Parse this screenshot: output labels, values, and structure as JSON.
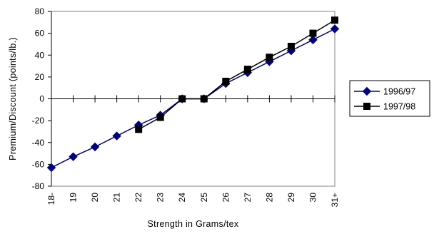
{
  "chart_data": {
    "type": "line",
    "title": "",
    "xlabel": "Strength in Grams/tex",
    "ylabel": "Premium/Discount (points/lb.)",
    "categories": [
      "18-",
      "19",
      "20",
      "21",
      "22",
      "23",
      "24",
      "25",
      "26",
      "27",
      "28",
      "29",
      "30",
      "31+"
    ],
    "ylim": [
      -80,
      80
    ],
    "yticks": [
      -80,
      -60,
      -40,
      -20,
      0,
      20,
      40,
      60,
      80
    ],
    "yticklabels": [
      "-80",
      "-60",
      "-40",
      "-20",
      "0",
      "20",
      "40",
      "60",
      "80"
    ],
    "grid": false,
    "legend_position": "right",
    "series": [
      {
        "name": "1996/97",
        "color": "#000080",
        "marker": "diamond",
        "values": [
          -63,
          -53,
          -44,
          -34,
          -24,
          -15,
          0,
          0,
          14,
          24,
          34,
          44,
          54,
          64
        ]
      },
      {
        "name": "1997/98",
        "color": "#000000",
        "marker": "square",
        "values": [
          null,
          null,
          null,
          null,
          -28,
          -17,
          0,
          0,
          16,
          27,
          38,
          48,
          60,
          72
        ]
      }
    ]
  }
}
